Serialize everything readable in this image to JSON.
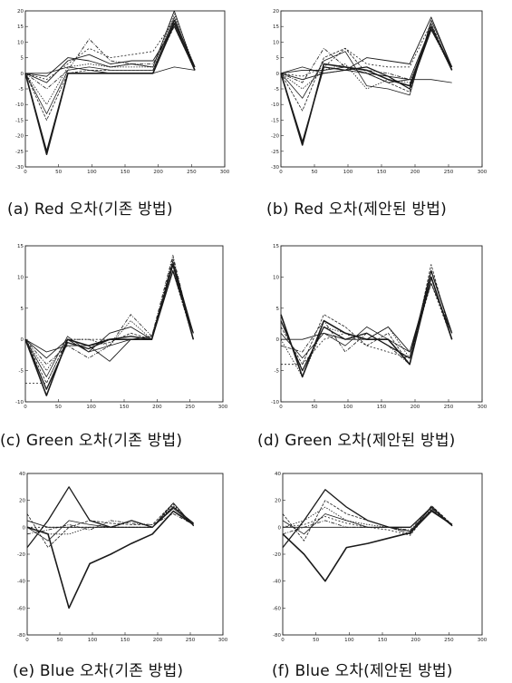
{
  "chart_data": [
    {
      "type": "line",
      "title": "(a) Red 오차(기존 방법)",
      "xlim": [
        0,
        300
      ],
      "ylim": [
        -30,
        20
      ],
      "xticks": [
        0,
        50,
        100,
        150,
        200,
        250,
        300
      ],
      "yticks": [
        -30,
        -25,
        -20,
        -15,
        -10,
        -5,
        0,
        5,
        10,
        15,
        20
      ],
      "x": [
        0,
        32,
        64,
        96,
        128,
        160,
        192,
        224,
        255
      ],
      "series": [
        {
          "values": [
            0,
            -26,
            0,
            0,
            0,
            0,
            0,
            16,
            1
          ]
        },
        {
          "values": [
            0,
            -25,
            0,
            0,
            0,
            0,
            0,
            17,
            2
          ]
        },
        {
          "values": [
            0,
            -15,
            0,
            1,
            1,
            1,
            1,
            15,
            1
          ]
        },
        {
          "values": [
            0,
            -13,
            1,
            2,
            1,
            1,
            1,
            18,
            1
          ]
        },
        {
          "values": [
            0,
            -10,
            2,
            3,
            2,
            2,
            2,
            19,
            2
          ]
        },
        {
          "values": [
            0,
            -5,
            1,
            11,
            4,
            3,
            3,
            16,
            1
          ]
        },
        {
          "values": [
            0,
            -3,
            4,
            6,
            3,
            4,
            4,
            15,
            1
          ]
        },
        {
          "values": [
            0,
            -2,
            3,
            8,
            5,
            6,
            7,
            17,
            2
          ]
        },
        {
          "values": [
            0,
            -1,
            5,
            4,
            2,
            3,
            2,
            20,
            1
          ]
        },
        {
          "values": [
            0,
            0,
            2,
            1,
            0,
            0,
            0,
            2,
            1
          ]
        }
      ]
    },
    {
      "type": "line",
      "title": "(b) Red 오차(제안된 방법)",
      "xlim": [
        0,
        300
      ],
      "ylim": [
        -30,
        20
      ],
      "xticks": [
        0,
        50,
        100,
        150,
        200,
        250,
        300
      ],
      "yticks": [
        -30,
        -25,
        -20,
        -15,
        -10,
        -5,
        0,
        5,
        10,
        15,
        20
      ],
      "x": [
        0,
        32,
        64,
        96,
        128,
        160,
        192,
        224,
        255
      ],
      "series": [
        {
          "values": [
            0,
            -23,
            3,
            2,
            1,
            -2,
            -4,
            15,
            1
          ]
        },
        {
          "values": [
            0,
            -22,
            2,
            1,
            2,
            -1,
            -5,
            14,
            2
          ]
        },
        {
          "values": [
            0,
            -12,
            5,
            8,
            0,
            -3,
            -6,
            16,
            1
          ]
        },
        {
          "values": [
            0,
            -8,
            4,
            7,
            -4,
            -5,
            -7,
            17,
            2
          ]
        },
        {
          "values": [
            0,
            -5,
            1,
            3,
            -5,
            -2,
            -3,
            14,
            1
          ]
        },
        {
          "values": [
            0,
            -3,
            8,
            2,
            1,
            0,
            -2,
            15,
            1
          ]
        },
        {
          "values": [
            0,
            -2,
            0,
            1,
            5,
            4,
            3,
            18,
            2
          ]
        },
        {
          "values": [
            0,
            -1,
            2,
            8,
            3,
            2,
            2,
            16,
            1
          ]
        },
        {
          "values": [
            0,
            1,
            1,
            2,
            0,
            -3,
            -2,
            15,
            2
          ]
        },
        {
          "values": [
            0,
            2,
            0,
            1,
            0,
            -1,
            -2,
            -2,
            -3
          ]
        }
      ]
    },
    {
      "type": "line",
      "title": "(c) Green 오차(기존 방법)",
      "xlim": [
        0,
        300
      ],
      "ylim": [
        -10,
        15
      ],
      "xticks": [
        0,
        50,
        100,
        150,
        200,
        250,
        300
      ],
      "yticks": [
        -10,
        -5,
        0,
        5,
        10,
        15
      ],
      "x": [
        0,
        32,
        64,
        96,
        128,
        160,
        192,
        224,
        255
      ],
      "series": [
        {
          "values": [
            0,
            -9,
            0,
            -1,
            0,
            0,
            0,
            12,
            0
          ]
        },
        {
          "values": [
            0,
            -8,
            -0.5,
            -1.5,
            0,
            0.5,
            0,
            11,
            1
          ]
        },
        {
          "values": [
            0,
            -7,
            0,
            -1,
            -0.5,
            1,
            0,
            13,
            0
          ]
        },
        {
          "values": [
            0,
            -6,
            0.5,
            -2,
            -1,
            0,
            0.5,
            12,
            1
          ]
        },
        {
          "values": [
            0,
            -5,
            0,
            0,
            -1,
            3,
            0,
            11,
            0
          ]
        },
        {
          "values": [
            0,
            -4,
            -1,
            -3,
            -1,
            4,
            0.5,
            13.5,
            0
          ]
        },
        {
          "values": [
            0,
            -3,
            0,
            -2,
            1,
            2,
            0,
            12.5,
            1
          ]
        },
        {
          "values": [
            -7,
            -7,
            0,
            0,
            0,
            0,
            0,
            11,
            0
          ]
        },
        {
          "values": [
            0,
            -2,
            -1,
            -1,
            -3.5,
            0,
            0,
            12,
            0
          ]
        }
      ]
    },
    {
      "type": "line",
      "title": "(d) Green 오차(제안된 방법)",
      "xlim": [
        0,
        300
      ],
      "ylim": [
        -10,
        15
      ],
      "xticks": [
        0,
        50,
        100,
        150,
        200,
        250,
        300
      ],
      "yticks": [
        -10,
        -5,
        0,
        5,
        10,
        15
      ],
      "x": [
        0,
        32,
        64,
        96,
        128,
        160,
        192,
        224,
        255
      ],
      "series": [
        {
          "values": [
            4,
            -6,
            3,
            1,
            0,
            0,
            -4,
            10,
            0
          ]
        },
        {
          "values": [
            3,
            -5,
            2,
            0,
            1,
            -1,
            -3,
            11,
            1
          ]
        },
        {
          "values": [
            2,
            -4,
            4,
            2,
            -1,
            1,
            -4,
            12,
            0
          ]
        },
        {
          "values": [
            1,
            -3,
            1,
            -1,
            2,
            0,
            -2,
            9,
            1
          ]
        },
        {
          "values": [
            0,
            -6,
            2,
            1,
            0,
            2,
            -3,
            10,
            0
          ]
        },
        {
          "values": [
            -1,
            -2,
            3,
            -2,
            1,
            -1,
            -4,
            11,
            1
          ]
        },
        {
          "values": [
            0,
            0,
            1,
            0,
            0,
            2,
            -2,
            10,
            0
          ]
        },
        {
          "values": [
            -4,
            -4,
            0,
            1,
            -1,
            -2,
            -3,
            9,
            0
          ]
        }
      ]
    },
    {
      "type": "line",
      "title": "(e) Blue 오차(기존 방법)",
      "xlim": [
        0,
        300
      ],
      "ylim": [
        -80,
        40
      ],
      "xticks": [
        0,
        50,
        100,
        150,
        200,
        250,
        300
      ],
      "yticks": [
        -80,
        -60,
        -40,
        -20,
        0,
        20,
        40
      ],
      "x": [
        0,
        32,
        64,
        96,
        128,
        160,
        192,
        224,
        255
      ],
      "series": [
        {
          "values": [
            0,
            -5,
            -60,
            -27,
            -20,
            -12,
            -5,
            12,
            2
          ]
        },
        {
          "values": [
            -15,
            5,
            30,
            5,
            0,
            5,
            0,
            15,
            3
          ]
        },
        {
          "values": [
            10,
            -15,
            0,
            5,
            3,
            2,
            2,
            18,
            1
          ]
        },
        {
          "values": [
            0,
            -10,
            5,
            2,
            0,
            0,
            0,
            14,
            2
          ]
        },
        {
          "values": [
            0,
            -5,
            -5,
            0,
            0,
            0,
            0,
            16,
            1
          ]
        },
        {
          "values": [
            -5,
            -2,
            2,
            -2,
            5,
            3,
            2,
            10,
            2
          ]
        },
        {
          "values": [
            5,
            0,
            0,
            0,
            0,
            0,
            0,
            18,
            1
          ]
        },
        {
          "values": [
            0,
            0,
            0,
            0,
            0,
            0,
            0,
            17,
            1
          ]
        }
      ]
    },
    {
      "type": "line",
      "title": "(f) Blue 오차(제안된 방법)",
      "xlim": [
        0,
        300
      ],
      "ylim": [
        -80,
        40
      ],
      "xticks": [
        0,
        50,
        100,
        150,
        200,
        250,
        300
      ],
      "yticks": [
        -80,
        -60,
        -40,
        -20,
        0,
        20,
        40
      ],
      "x": [
        0,
        32,
        64,
        96,
        128,
        160,
        192,
        224,
        255
      ],
      "series": [
        {
          "values": [
            -5,
            -20,
            -40,
            -15,
            -12,
            -8,
            -4,
            12,
            2
          ]
        },
        {
          "values": [
            -15,
            5,
            28,
            15,
            5,
            0,
            0,
            15,
            1
          ]
        },
        {
          "values": [
            10,
            -10,
            20,
            10,
            5,
            0,
            -5,
            16,
            2
          ]
        },
        {
          "values": [
            5,
            -5,
            10,
            5,
            0,
            0,
            -3,
            13,
            1
          ]
        },
        {
          "values": [
            0,
            5,
            15,
            5,
            2,
            0,
            -5,
            14,
            2
          ]
        },
        {
          "values": [
            -5,
            0,
            5,
            0,
            0,
            0,
            -2,
            16,
            1
          ]
        },
        {
          "values": [
            0,
            0,
            0,
            0,
            0,
            0,
            -3,
            15,
            1
          ]
        },
        {
          "values": [
            0,
            2,
            8,
            3,
            0,
            -2,
            -6,
            14,
            1
          ]
        }
      ]
    }
  ]
}
